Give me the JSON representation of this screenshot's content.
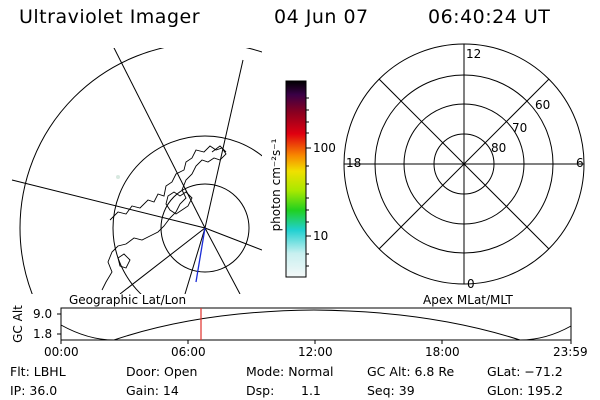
{
  "header": {
    "title": "Ultraviolet Imager",
    "date": "04 Jun 07",
    "time": "06:40:24 UT"
  },
  "colorbar": {
    "label": "photon cm⁻²s⁻¹",
    "tick_high": "100",
    "tick_low": "10"
  },
  "polar_plot": {
    "clock_labels": {
      "top": "12",
      "left": "18",
      "right": "6",
      "bottom": "0"
    },
    "lat_labels": [
      "60",
      "70",
      "80"
    ]
  },
  "map_labels": {
    "left": "Geographic Lat/Lon",
    "right": "Apex MLat/MLT"
  },
  "altitude_plot": {
    "ylabel": "GC Alt",
    "ytick_high": "9.0",
    "ytick_low": "1.8",
    "xticks": [
      "00:00",
      "06:00",
      "12:00",
      "18:00",
      "23:59"
    ],
    "marker_color": "#e0302a"
  },
  "info": {
    "filter": "Flt: LBHL",
    "ip": "IP: 36.0",
    "door": "Door: Open",
    "gain": "Gain: 14",
    "mode": "Mode: Normal",
    "dsp_label": "Dsp:",
    "dsp_value": "1.1",
    "gc_alt": "GC Alt: 6.8 Re",
    "seq": "Seq: 39",
    "glat": "GLat: −71.2",
    "glon": "GLon: 195.2"
  }
}
